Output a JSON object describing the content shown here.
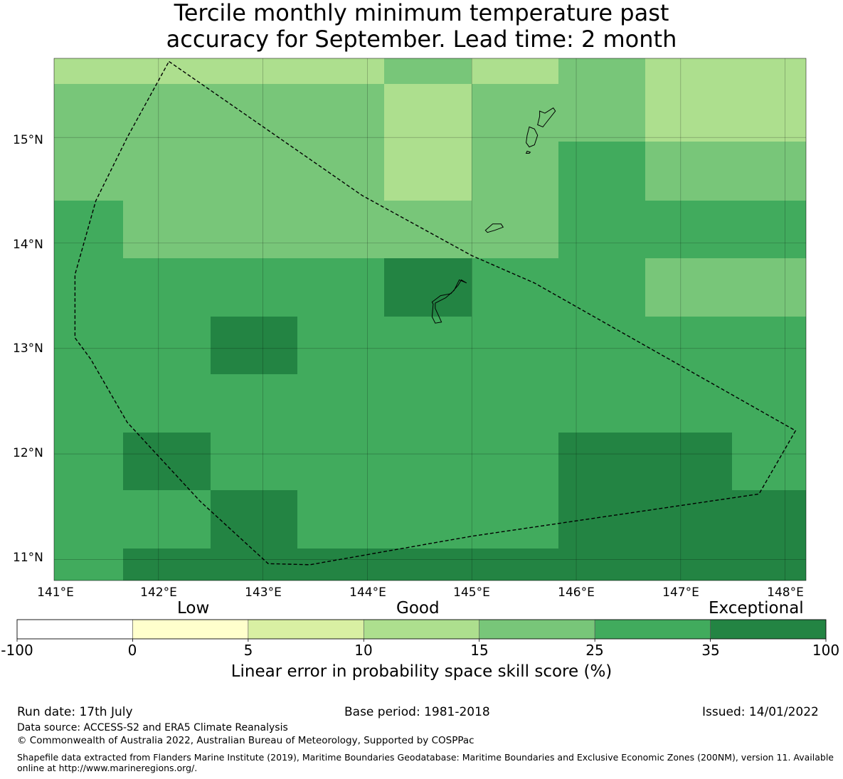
{
  "title": {
    "line1": "Tercile monthly minimum temperature past",
    "line2": "accuracy for September. Lead time: 2 month"
  },
  "map": {
    "lon_range": [
      141.0,
      148.2
    ],
    "lat_range": [
      10.8,
      15.75
    ],
    "lat_labels": [
      "15°N",
      "14°N",
      "13°N",
      "12°N",
      "11°N"
    ],
    "lon_labels": [
      "141°E",
      "142°E",
      "143°E",
      "144°E",
      "145°E",
      "146°E",
      "147°E",
      "148°E"
    ],
    "grid_colors": {
      "10-15": "#addf8e",
      "15-25": "#78c679",
      "25-35": "#41ab5d",
      "35-100": "#238443"
    },
    "cells": [
      [
        "10-15",
        "10-15",
        "10-15",
        "10-15",
        "15-25",
        "10-15",
        "15-25",
        "10-15",
        "10-15"
      ],
      [
        "15-25",
        "15-25",
        "15-25",
        "15-25",
        "10-15",
        "15-25",
        "15-25",
        "10-15",
        "10-15"
      ],
      [
        "15-25",
        "15-25",
        "15-25",
        "15-25",
        "10-15",
        "15-25",
        "25-35",
        "15-25",
        "15-25"
      ],
      [
        "25-35",
        "15-25",
        "15-25",
        "15-25",
        "15-25",
        "15-25",
        "25-35",
        "25-35",
        "25-35"
      ],
      [
        "25-35",
        "25-35",
        "25-35",
        "25-35",
        "35-100",
        "25-35",
        "25-35",
        "15-25",
        "15-25"
      ],
      [
        "25-35",
        "25-35",
        "35-100",
        "25-35",
        "25-35",
        "25-35",
        "25-35",
        "25-35",
        "25-35"
      ],
      [
        "25-35",
        "25-35",
        "25-35",
        "25-35",
        "25-35",
        "25-35",
        "25-35",
        "25-35",
        "25-35"
      ],
      [
        "25-35",
        "35-100",
        "25-35",
        "25-35",
        "25-35",
        "25-35",
        "35-100",
        "35-100",
        "25-35"
      ],
      [
        "25-35",
        "25-35",
        "35-100",
        "25-35",
        "25-35",
        "25-35",
        "35-100",
        "35-100",
        "35-100"
      ],
      [
        "25-35",
        "35-100",
        "35-100",
        "35-100",
        "35-100",
        "35-100",
        "35-100",
        "35-100",
        "35-100"
      ]
    ],
    "boundary_lonlat": [
      [
        142.1,
        15.72
      ],
      [
        143.95,
        14.45
      ],
      [
        145.0,
        13.88
      ],
      [
        145.6,
        13.62
      ],
      [
        148.1,
        12.22
      ],
      [
        147.75,
        11.62
      ],
      [
        145.0,
        11.22
      ],
      [
        143.45,
        10.95
      ],
      [
        143.05,
        10.96
      ],
      [
        142.4,
        11.55
      ],
      [
        141.7,
        12.3
      ],
      [
        141.35,
        12.9
      ],
      [
        141.2,
        13.1
      ],
      [
        141.2,
        13.7
      ],
      [
        141.4,
        14.4
      ],
      [
        141.7,
        15.0
      ],
      [
        142.1,
        15.72
      ]
    ],
    "islands_lonlat": [
      [
        [
          145.65,
          15.25
        ],
        [
          145.7,
          15.23
        ],
        [
          145.78,
          15.28
        ],
        [
          145.8,
          15.25
        ],
        [
          145.72,
          15.15
        ],
        [
          145.68,
          15.1
        ],
        [
          145.63,
          15.12
        ],
        [
          145.65,
          15.2
        ],
        [
          145.65,
          15.25
        ]
      ],
      [
        [
          145.55,
          15.1
        ],
        [
          145.6,
          15.08
        ],
        [
          145.63,
          15.02
        ],
        [
          145.6,
          14.93
        ],
        [
          145.55,
          14.91
        ],
        [
          145.52,
          14.95
        ],
        [
          145.53,
          15.02
        ],
        [
          145.55,
          15.1
        ]
      ],
      [
        [
          145.53,
          14.87
        ],
        [
          145.56,
          14.86
        ],
        [
          145.55,
          14.85
        ],
        [
          145.52,
          14.85
        ],
        [
          145.53,
          14.87
        ]
      ],
      [
        [
          145.13,
          14.12
        ],
        [
          145.2,
          14.18
        ],
        [
          145.28,
          14.18
        ],
        [
          145.3,
          14.15
        ],
        [
          145.22,
          14.12
        ],
        [
          145.15,
          14.1
        ],
        [
          145.13,
          14.12
        ]
      ],
      [
        [
          144.95,
          13.62
        ],
        [
          144.88,
          13.65
        ],
        [
          144.83,
          13.55
        ],
        [
          144.75,
          13.48
        ],
        [
          144.65,
          13.43
        ],
        [
          144.65,
          13.38
        ],
        [
          144.71,
          13.25
        ],
        [
          144.65,
          13.24
        ],
        [
          144.62,
          13.3
        ],
        [
          144.63,
          13.42
        ],
        [
          144.62,
          13.44
        ],
        [
          144.7,
          13.5
        ],
        [
          144.8,
          13.52
        ],
        [
          144.87,
          13.6
        ],
        [
          144.9,
          13.65
        ],
        [
          144.95,
          13.62
        ]
      ]
    ]
  },
  "colorbar": {
    "category_labels": [
      "Low",
      "Good",
      "Exceptional"
    ],
    "boundaries": [
      "-100",
      "0",
      "5",
      "10",
      "15",
      "25",
      "35",
      "100"
    ],
    "colors": [
      "#ffffff",
      "#ffffcc",
      "#d9f0a3",
      "#addf8e",
      "#78c679",
      "#41ab5d",
      "#238443"
    ],
    "label": "Linear error in probability space skill score (%)"
  },
  "footer": {
    "run_date": "Run date: 17th July",
    "base_period": "Base period: 1981-2018",
    "issued": "Issued: 14/01/2022",
    "data_source": "Data source: ACCESS-S2 and ERA5 Climate Reanalysis",
    "copyright": "© Commonwealth of Australia 2022, Australian Bureau of Meteorology, Supported by COSPPac",
    "shapefile_note": "Shapefile data extracted from Flanders Marine Institute (2019), Maritime Boundaries Geodatabase: Maritime Boundaries and Exclusive Economic Zones (200NM), version 11. Available online at http://www.marineregions.org/."
  }
}
